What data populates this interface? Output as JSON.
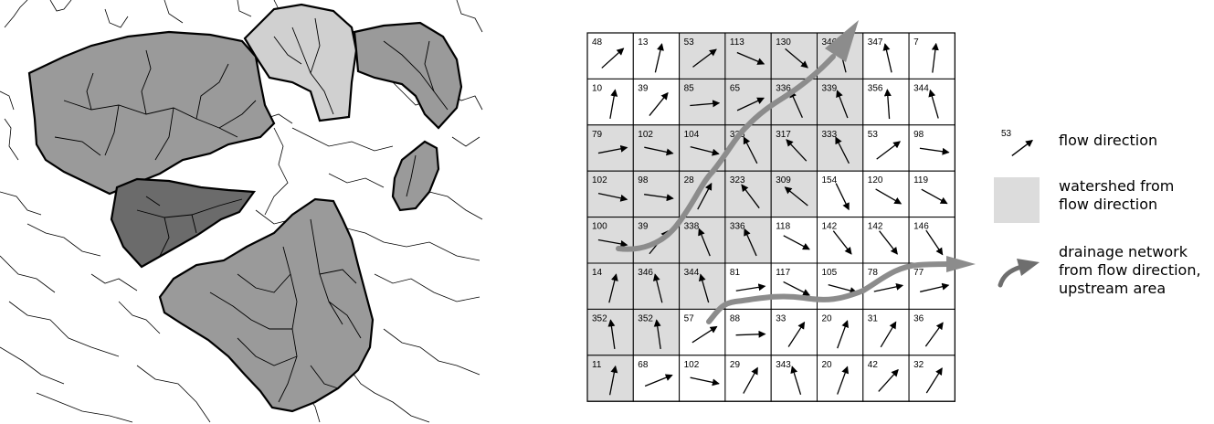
{
  "grid": {
    "rows": [
      [
        48,
        13,
        53,
        113,
        130,
        346,
        347,
        7
      ],
      [
        10,
        39,
        85,
        65,
        336,
        339,
        356,
        344
      ],
      [
        79,
        102,
        104,
        333,
        317,
        333,
        53,
        98
      ],
      [
        102,
        98,
        28,
        323,
        309,
        154,
        120,
        119
      ],
      [
        100,
        39,
        338,
        336,
        118,
        142,
        142,
        146
      ],
      [
        14,
        346,
        344,
        81,
        117,
        105,
        78,
        77
      ],
      [
        352,
        352,
        57,
        88,
        33,
        20,
        31,
        36
      ],
      [
        11,
        68,
        102,
        29,
        343,
        20,
        42,
        32
      ]
    ],
    "watershed": [
      [
        0,
        0,
        1,
        1,
        1,
        1,
        0,
        0
      ],
      [
        0,
        0,
        1,
        1,
        1,
        1,
        0,
        0
      ],
      [
        1,
        1,
        1,
        1,
        1,
        1,
        0,
        0
      ],
      [
        1,
        1,
        1,
        1,
        1,
        0,
        0,
        0
      ],
      [
        1,
        1,
        1,
        1,
        0,
        0,
        0,
        0
      ],
      [
        1,
        1,
        1,
        0,
        0,
        0,
        0,
        0
      ],
      [
        1,
        1,
        0,
        0,
        0,
        0,
        0,
        0
      ],
      [
        1,
        0,
        0,
        0,
        0,
        0,
        0,
        0
      ]
    ]
  },
  "legend": {
    "sample_value": "53",
    "sample_angle": 53,
    "flow_direction": "flow direction",
    "watershed_line1": "watershed from",
    "watershed_line2": "flow direction",
    "drainage_line1": "drainage network",
    "drainage_line2": "from flow direction,",
    "drainage_line3": "upstream area"
  },
  "colors": {
    "watershed_fill": "#dcdcdc",
    "drainage_arrow": "#8c8c8c",
    "legend_arrow": "#6e6e6e",
    "basin_light": "#d0d0d0",
    "basin_mid": "#9a9a9a",
    "basin_dark": "#6b6b6b"
  }
}
